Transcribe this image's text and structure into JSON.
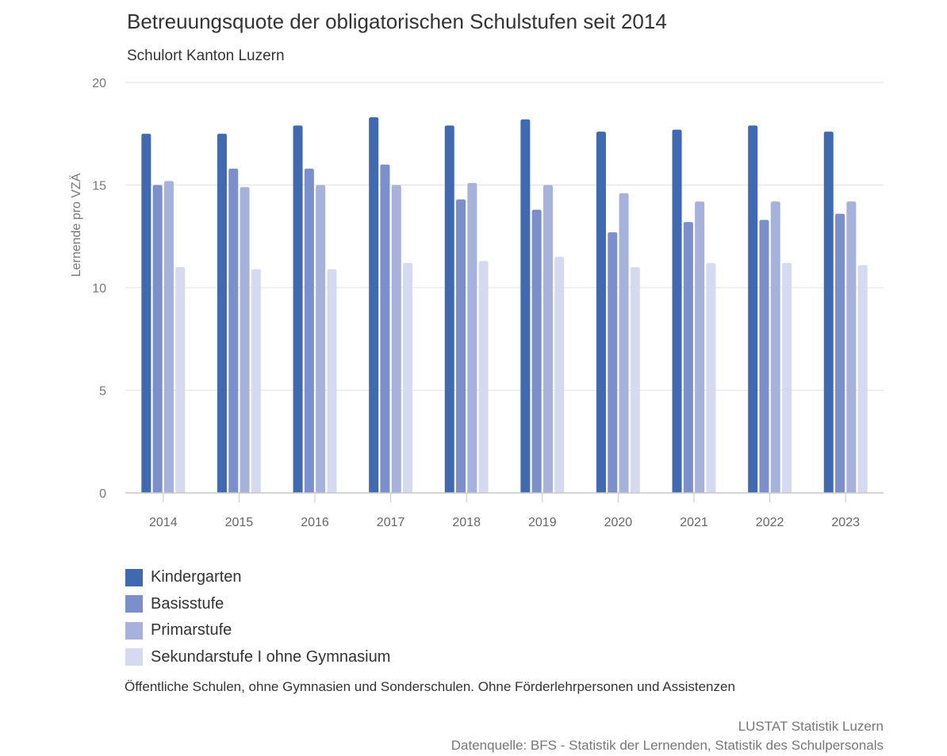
{
  "chart_data": {
    "type": "bar",
    "title": "Betreuungsquote der obligatorischen Schulstufen seit 2014",
    "subtitle": "Schulort Kanton Luzern",
    "xlabel": "",
    "ylabel": "Lernende pro VZÄ",
    "ylim": [
      0,
      20
    ],
    "yticks": [
      0,
      5,
      10,
      15,
      20
    ],
    "grid": true,
    "legend_position": "bottom-left",
    "categories": [
      "2014",
      "2015",
      "2016",
      "2017",
      "2018",
      "2019",
      "2020",
      "2021",
      "2022",
      "2023"
    ],
    "series": [
      {
        "name": "Kindergarten",
        "color": "#3f6ab2",
        "values": [
          17.5,
          17.5,
          17.9,
          18.3,
          17.9,
          18.2,
          17.6,
          17.7,
          17.9,
          17.6
        ]
      },
      {
        "name": "Basisstufe",
        "color": "#7a8fcb",
        "values": [
          15.0,
          15.8,
          15.8,
          16.0,
          14.3,
          13.8,
          12.7,
          13.2,
          13.3,
          13.6
        ]
      },
      {
        "name": "Primarstufe",
        "color": "#a6b1dc",
        "values": [
          15.2,
          14.9,
          15.0,
          15.0,
          15.1,
          15.0,
          14.6,
          14.2,
          14.2,
          14.2
        ]
      },
      {
        "name": "Sekundarstufe I ohne Gymnasium",
        "color": "#d5daf0",
        "values": [
          11.0,
          10.9,
          10.9,
          11.2,
          11.3,
          11.5,
          11.0,
          11.2,
          11.2,
          11.1
        ]
      }
    ]
  },
  "note": "Öffentliche Schulen, ohne Gymnasien und Sonderschulen. Ohne Förderlehrpersonen und Assistenzen",
  "credit": {
    "line1": "LUSTAT Statistik Luzern",
    "line2": "Datenquelle: BFS - Statistik der Lernenden, Statistik des Schulpersonals"
  }
}
